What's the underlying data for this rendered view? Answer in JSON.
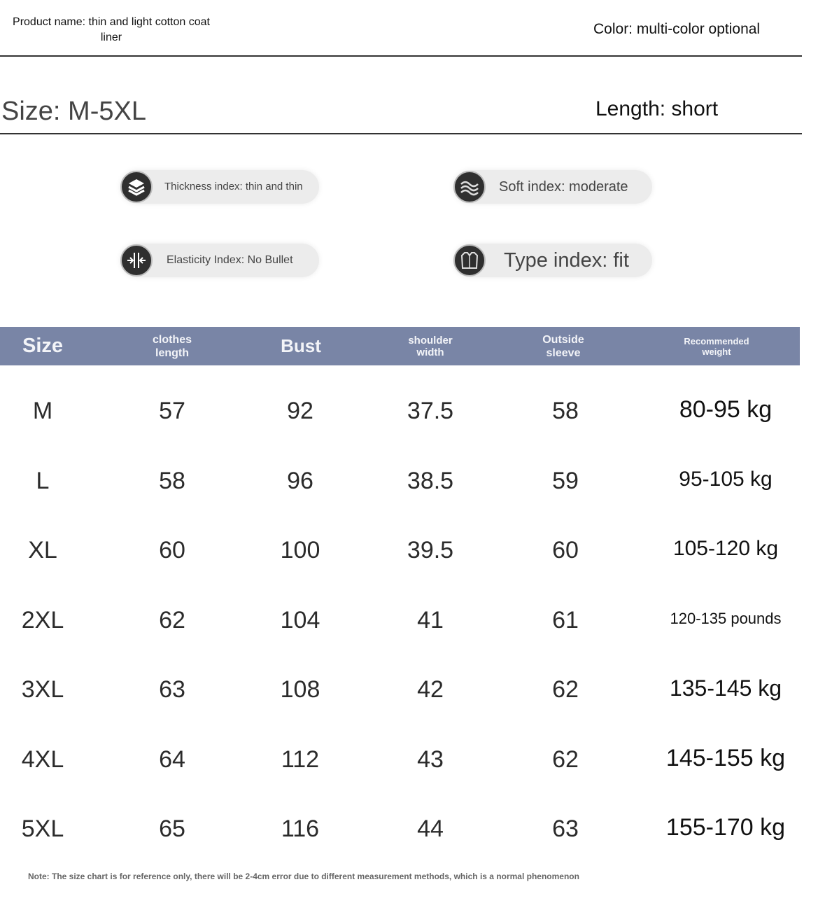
{
  "header": {
    "product_name": "Product name: thin and light cotton coat liner",
    "color": "Color: multi-color optional",
    "size": "Size: M-5XL",
    "length": "Length: short"
  },
  "indices": [
    {
      "icon": "layers-icon",
      "label": "Thickness index: thin and thin"
    },
    {
      "icon": "wave-icon",
      "label": "Soft index: moderate"
    },
    {
      "icon": "stretch-icon",
      "label": "Elasticity Index: No Bullet"
    },
    {
      "icon": "shirt-icon",
      "label": "Type index: fit"
    }
  ],
  "table": {
    "headers": [
      "Size",
      "clothes length",
      "Bust",
      "shoulder width",
      "Outside sleeve",
      "Recommended weight"
    ],
    "rows": [
      [
        "M",
        "57",
        "92",
        "37.5",
        "58",
        "80-95 kg"
      ],
      [
        "L",
        "58",
        "96",
        "38.5",
        "59",
        "95-105 kg"
      ],
      [
        "XL",
        "60",
        "100",
        "39.5",
        "60",
        "105-120 kg"
      ],
      [
        "2XL",
        "62",
        "104",
        "41",
        "61",
        "120-135 pounds"
      ],
      [
        "3XL",
        "63",
        "108",
        "42",
        "62",
        "135-145 kg"
      ],
      [
        "4XL",
        "64",
        "112",
        "43",
        "62",
        "145-155 kg"
      ],
      [
        "5XL",
        "65",
        "116",
        "44",
        "63",
        "155-170 kg"
      ]
    ],
    "header_color": "#7985a6"
  },
  "note": "Note: The size chart is for reference only, there will be 2-4cm error due to different measurement methods, which is a normal phenomenon"
}
